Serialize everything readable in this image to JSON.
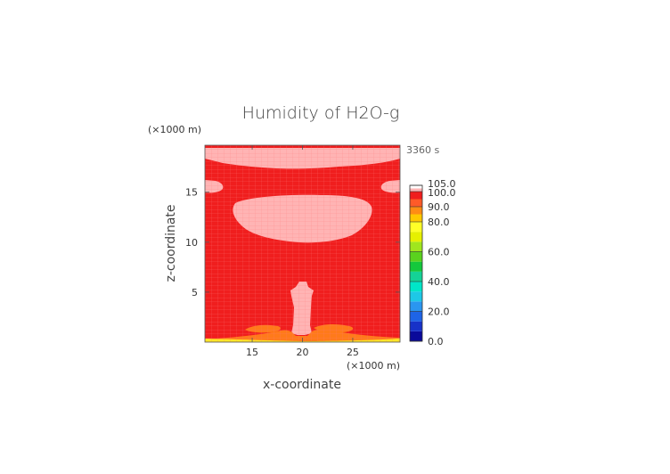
{
  "chart_data": {
    "type": "heatmap",
    "title": "Humidity of H2O-g",
    "xlabel": "x-coordinate",
    "ylabel": "z-coordinate",
    "x_unit": "(×1000 m)",
    "y_unit": "(×1000 m)",
    "time_label": "3360 s",
    "xlim": [
      10.3,
      29.7
    ],
    "ylim": [
      0,
      19.7
    ],
    "x_ticks": [
      15,
      20,
      25
    ],
    "y_ticks": [
      5,
      10,
      15
    ],
    "colorbar": {
      "levels": [
        "0.0",
        "20.0",
        "40.0",
        "60.0",
        "80.0",
        "90.0",
        "100.0",
        "105.0"
      ],
      "colors": [
        "#0a0a9a",
        "#1732c8",
        "#1e64e6",
        "#2a96f0",
        "#1ec8e6",
        "#00e6c8",
        "#14d296",
        "#14c83c",
        "#5ad21e",
        "#a0e61e",
        "#e6f000",
        "#ffff28",
        "#ffc800",
        "#ff8c14",
        "#ff5a28",
        "#f01e1e",
        "#ffb4b4",
        "#ffffff"
      ]
    },
    "background_value": "90.0-100.0",
    "regions": [
      {
        "name": "supersaturated-top-cap",
        "range": "100.0-105.0"
      },
      {
        "name": "supersaturated-left-lobe",
        "range": "100.0-105.0"
      },
      {
        "name": "supersaturated-right-lobe",
        "range": "100.0-105.0"
      },
      {
        "name": "supersaturated-upper-cloud",
        "range": "100.0-105.0"
      },
      {
        "name": "supersaturated-central-column",
        "range": "100.0-105.0"
      },
      {
        "name": "near-surface-orange",
        "range": "80.0-90.0"
      },
      {
        "name": "surface-yellow-layer",
        "range": "60.0-80.0"
      }
    ]
  },
  "colors": {
    "saturated": "#f01e1e",
    "supersaturated": "#ffb4b4",
    "orange": "#ff7a1a",
    "yellow": "#fff028",
    "grid": "#ff8080"
  }
}
